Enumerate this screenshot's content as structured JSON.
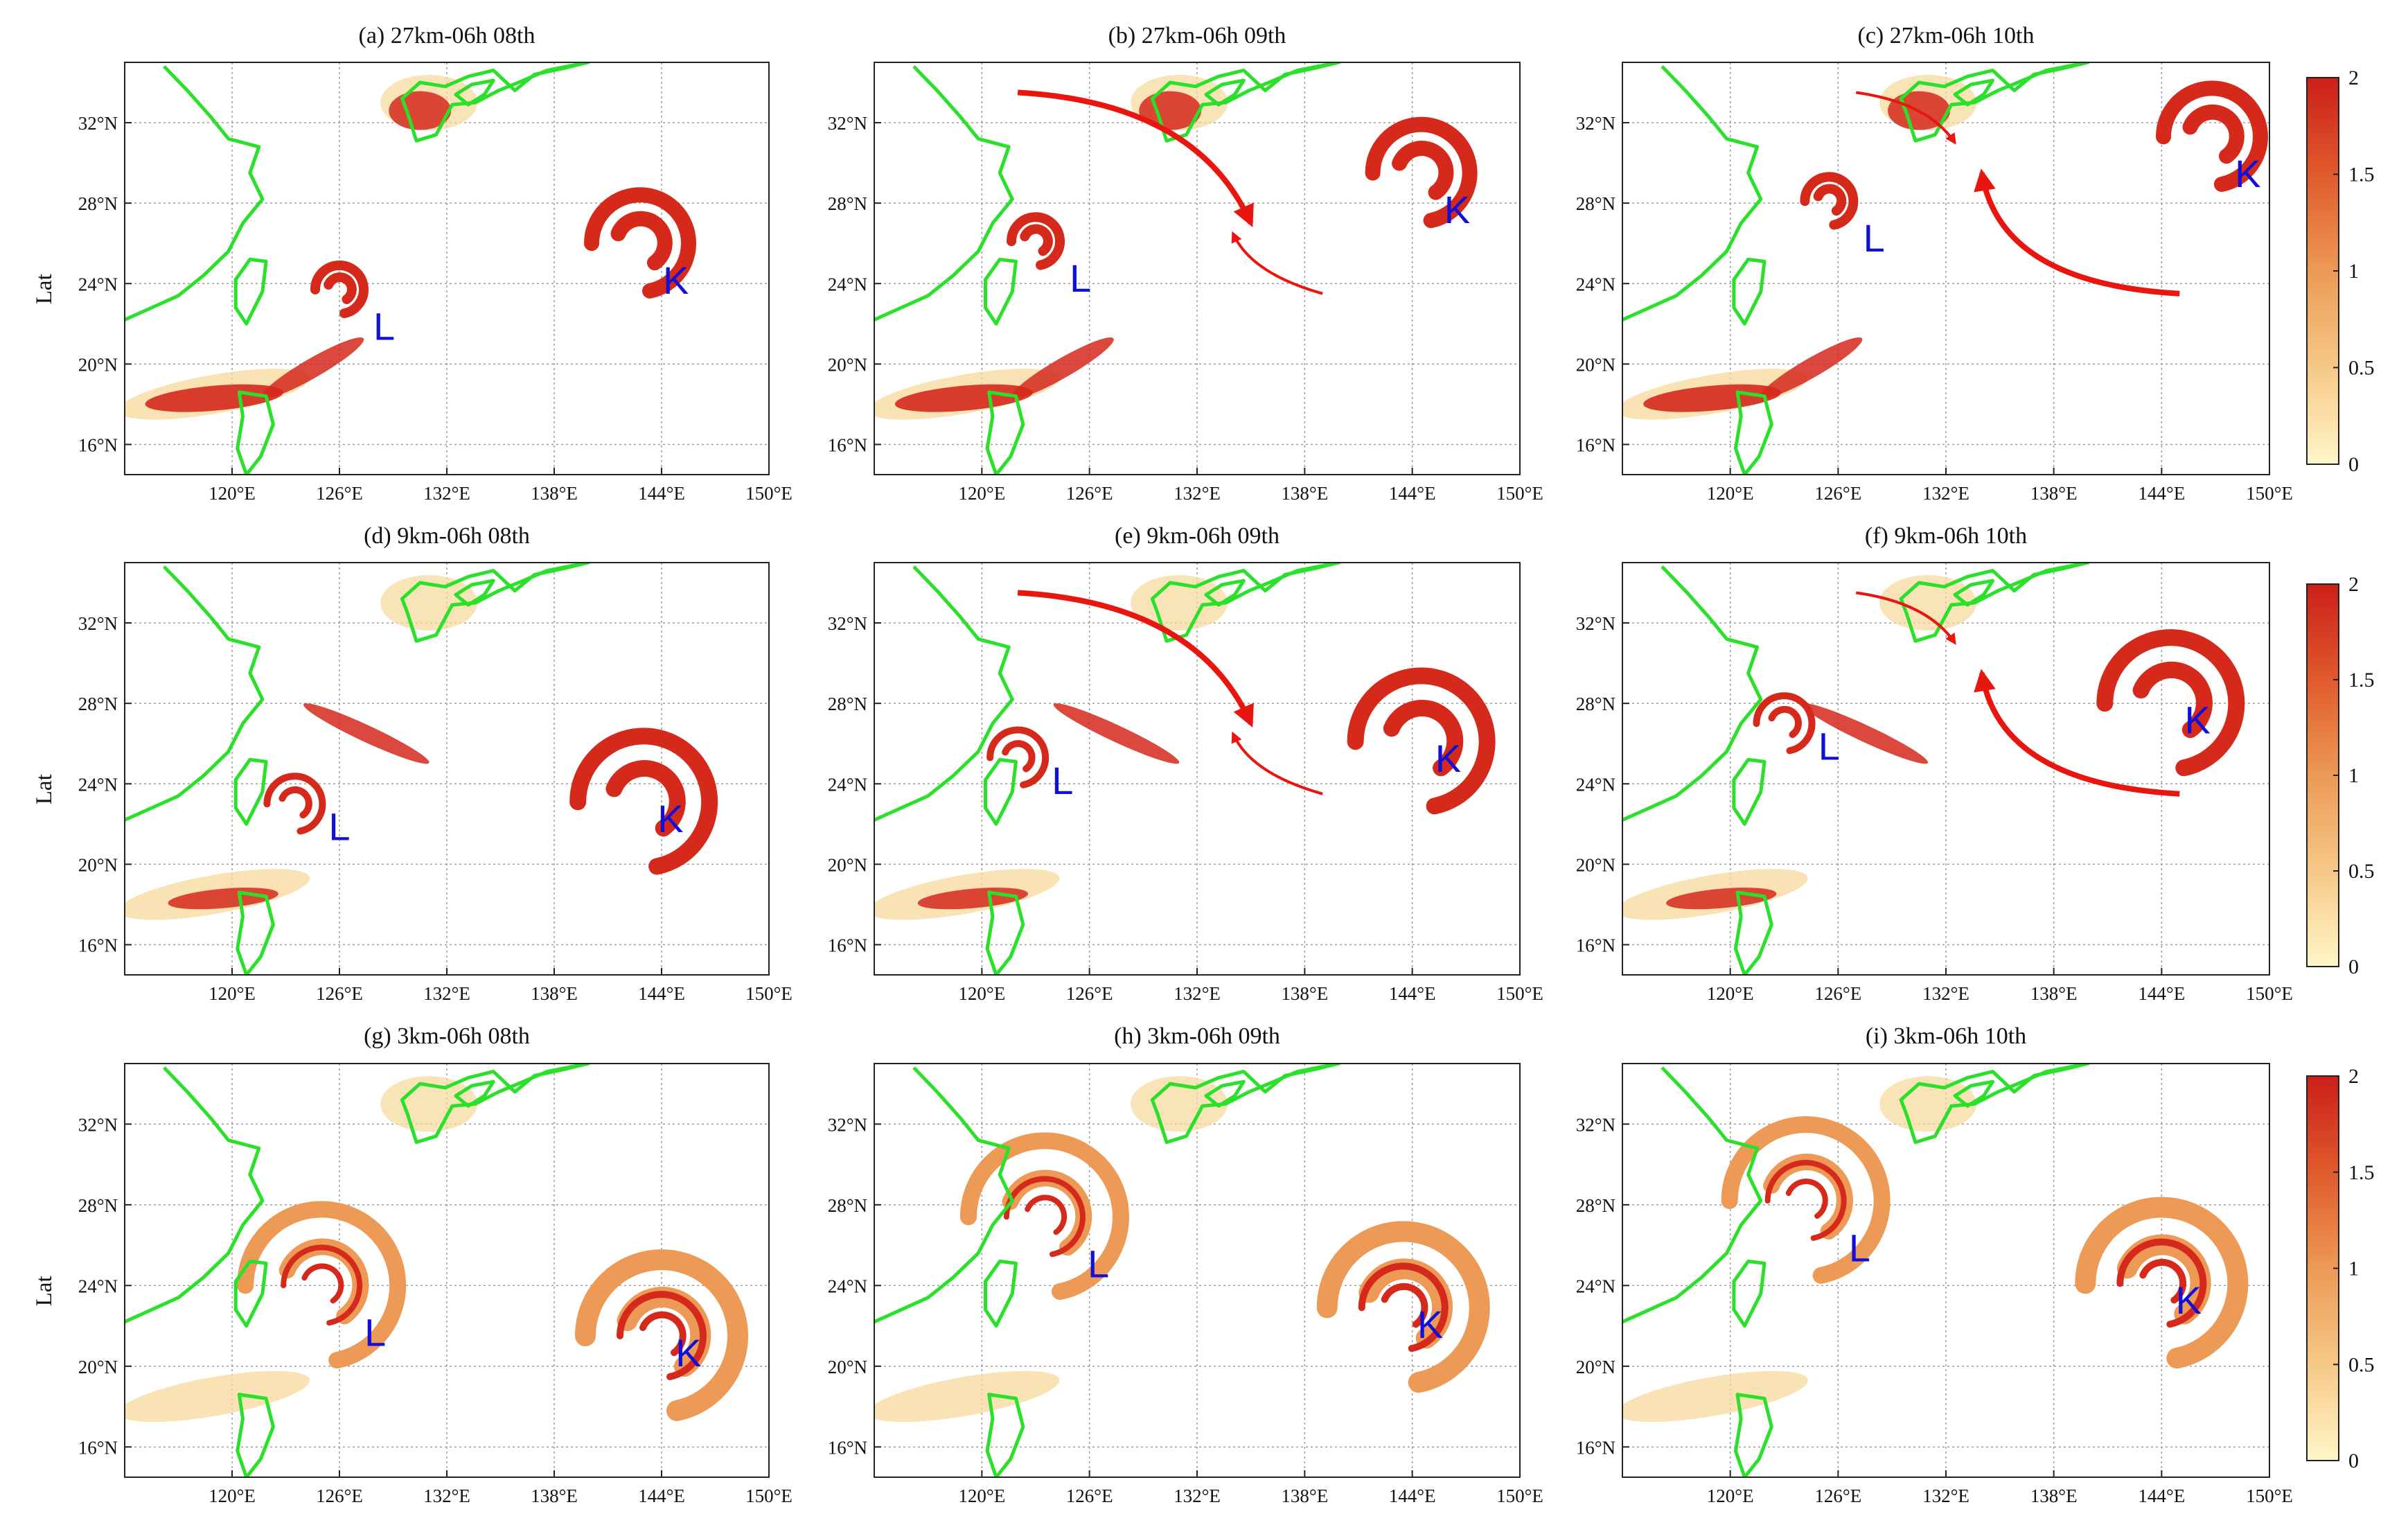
{
  "chart_data": {
    "type": "heatmap",
    "description_axes": {
      "xlim": [
        114,
        150
      ],
      "ylim": [
        14.5,
        35
      ],
      "x_ticks": [
        120,
        126,
        132,
        138,
        144,
        150
      ],
      "y_ticks": [
        16,
        20,
        24,
        28,
        32
      ],
      "x_tick_labels": [
        "120°E",
        "126°E",
        "132°E",
        "138°E",
        "144°E",
        "150°E"
      ],
      "y_tick_labels": [
        "16°N",
        "20°N",
        "24°N",
        "28°N",
        "32°N"
      ],
      "ylabel": "Lat",
      "grid": true
    },
    "colorbar": {
      "range": [
        0,
        2
      ],
      "ticks": [
        0,
        0.5,
        1,
        1.5,
        2
      ],
      "tick_labels": [
        "0",
        "0.5",
        "1",
        "1.5",
        "2"
      ],
      "colors": [
        "#fff6c8",
        "#f6c887",
        "#ec9a55",
        "#e05a2c",
        "#cc1f1a"
      ]
    },
    "panels": [
      {
        "title": "(a) 27km-06h 08th",
        "storms": [
          {
            "name": "L",
            "lon": 128.5,
            "lat": 21.2
          },
          {
            "name": "K",
            "lon": 144.8,
            "lat": 23.5
          }
        ]
      },
      {
        "title": "(b) 27km-06h 09th",
        "storms": [
          {
            "name": "L",
            "lon": 125.5,
            "lat": 23.6
          },
          {
            "name": "K",
            "lon": 146.5,
            "lat": 27.0
          }
        ]
      },
      {
        "title": "(c) 27km-06h 10th",
        "storms": [
          {
            "name": "L",
            "lon": 128.0,
            "lat": 25.6
          },
          {
            "name": "K",
            "lon": 148.8,
            "lat": 28.8
          }
        ]
      },
      {
        "title": "(d) 9km-06h 08th",
        "storms": [
          {
            "name": "L",
            "lon": 126.0,
            "lat": 21.2
          },
          {
            "name": "K",
            "lon": 144.5,
            "lat": 21.6
          }
        ]
      },
      {
        "title": "(e) 9km-06h 09th",
        "storms": [
          {
            "name": "L",
            "lon": 124.5,
            "lat": 23.5
          },
          {
            "name": "K",
            "lon": 146.0,
            "lat": 24.6
          }
        ]
      },
      {
        "title": "(f) 9km-06h 10th",
        "storms": [
          {
            "name": "L",
            "lon": 125.5,
            "lat": 25.2
          },
          {
            "name": "K",
            "lon": 146.0,
            "lat": 26.5
          }
        ]
      },
      {
        "title": "(g) 3km-06h 08th",
        "storms": [
          {
            "name": "L",
            "lon": 128.0,
            "lat": 21.0
          },
          {
            "name": "K",
            "lon": 145.5,
            "lat": 20.0
          }
        ]
      },
      {
        "title": "(h) 3km-06h 09th",
        "storms": [
          {
            "name": "L",
            "lon": 126.5,
            "lat": 24.4
          },
          {
            "name": "K",
            "lon": 145.0,
            "lat": 21.4
          }
        ]
      },
      {
        "title": "(i) 3km-06h 10th",
        "storms": [
          {
            "name": "L",
            "lon": 127.2,
            "lat": 25.2
          },
          {
            "name": "K",
            "lon": 145.5,
            "lat": 22.6
          }
        ]
      }
    ]
  }
}
